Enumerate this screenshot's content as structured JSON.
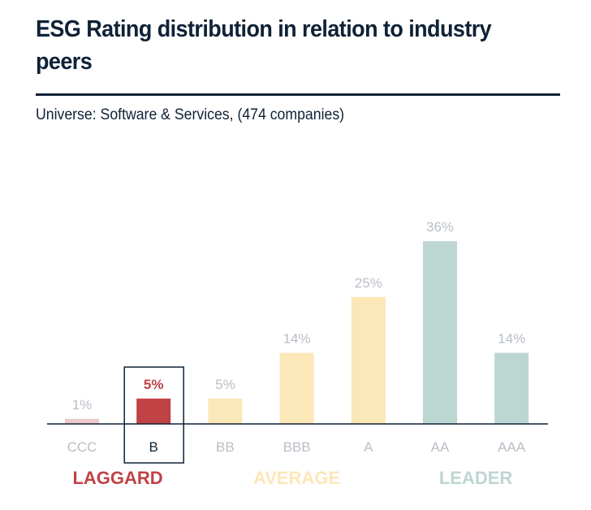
{
  "title": "ESG Rating distribution in relation to industry peers",
  "subtitle": "Universe: Software & Services, (474 companies)",
  "chart_data": {
    "type": "bar",
    "title": "ESG Rating distribution in relation to industry peers",
    "subtitle": "Universe: Software & Services, (474 companies)",
    "categories": [
      "CCC",
      "B",
      "BB",
      "BBB",
      "A",
      "AA",
      "AAA"
    ],
    "values": [
      1,
      5,
      5,
      14,
      25,
      36,
      14
    ],
    "value_labels": [
      "1%",
      "5%",
      "5%",
      "14%",
      "25%",
      "36%",
      "14%"
    ],
    "unit": "%",
    "highlighted_category": "B",
    "bar_colors": [
      "#ecc9c9",
      "#c04245",
      "#fce7b8",
      "#fce7b8",
      "#fce7b8",
      "#bcd6d2",
      "#bcd6d2"
    ],
    "groups": [
      {
        "label": "LAGGARD",
        "categories": [
          "CCC",
          "B"
        ],
        "color": "#c04245"
      },
      {
        "label": "AVERAGE",
        "categories": [
          "BB",
          "BBB",
          "A"
        ],
        "color": "#fce7b8"
      },
      {
        "label": "LEADER",
        "categories": [
          "AA",
          "AAA"
        ],
        "color": "#bcd6d2"
      }
    ],
    "xlabel": "",
    "ylabel": "",
    "ylim": [
      0,
      36
    ],
    "grid": false,
    "legend": "none"
  }
}
